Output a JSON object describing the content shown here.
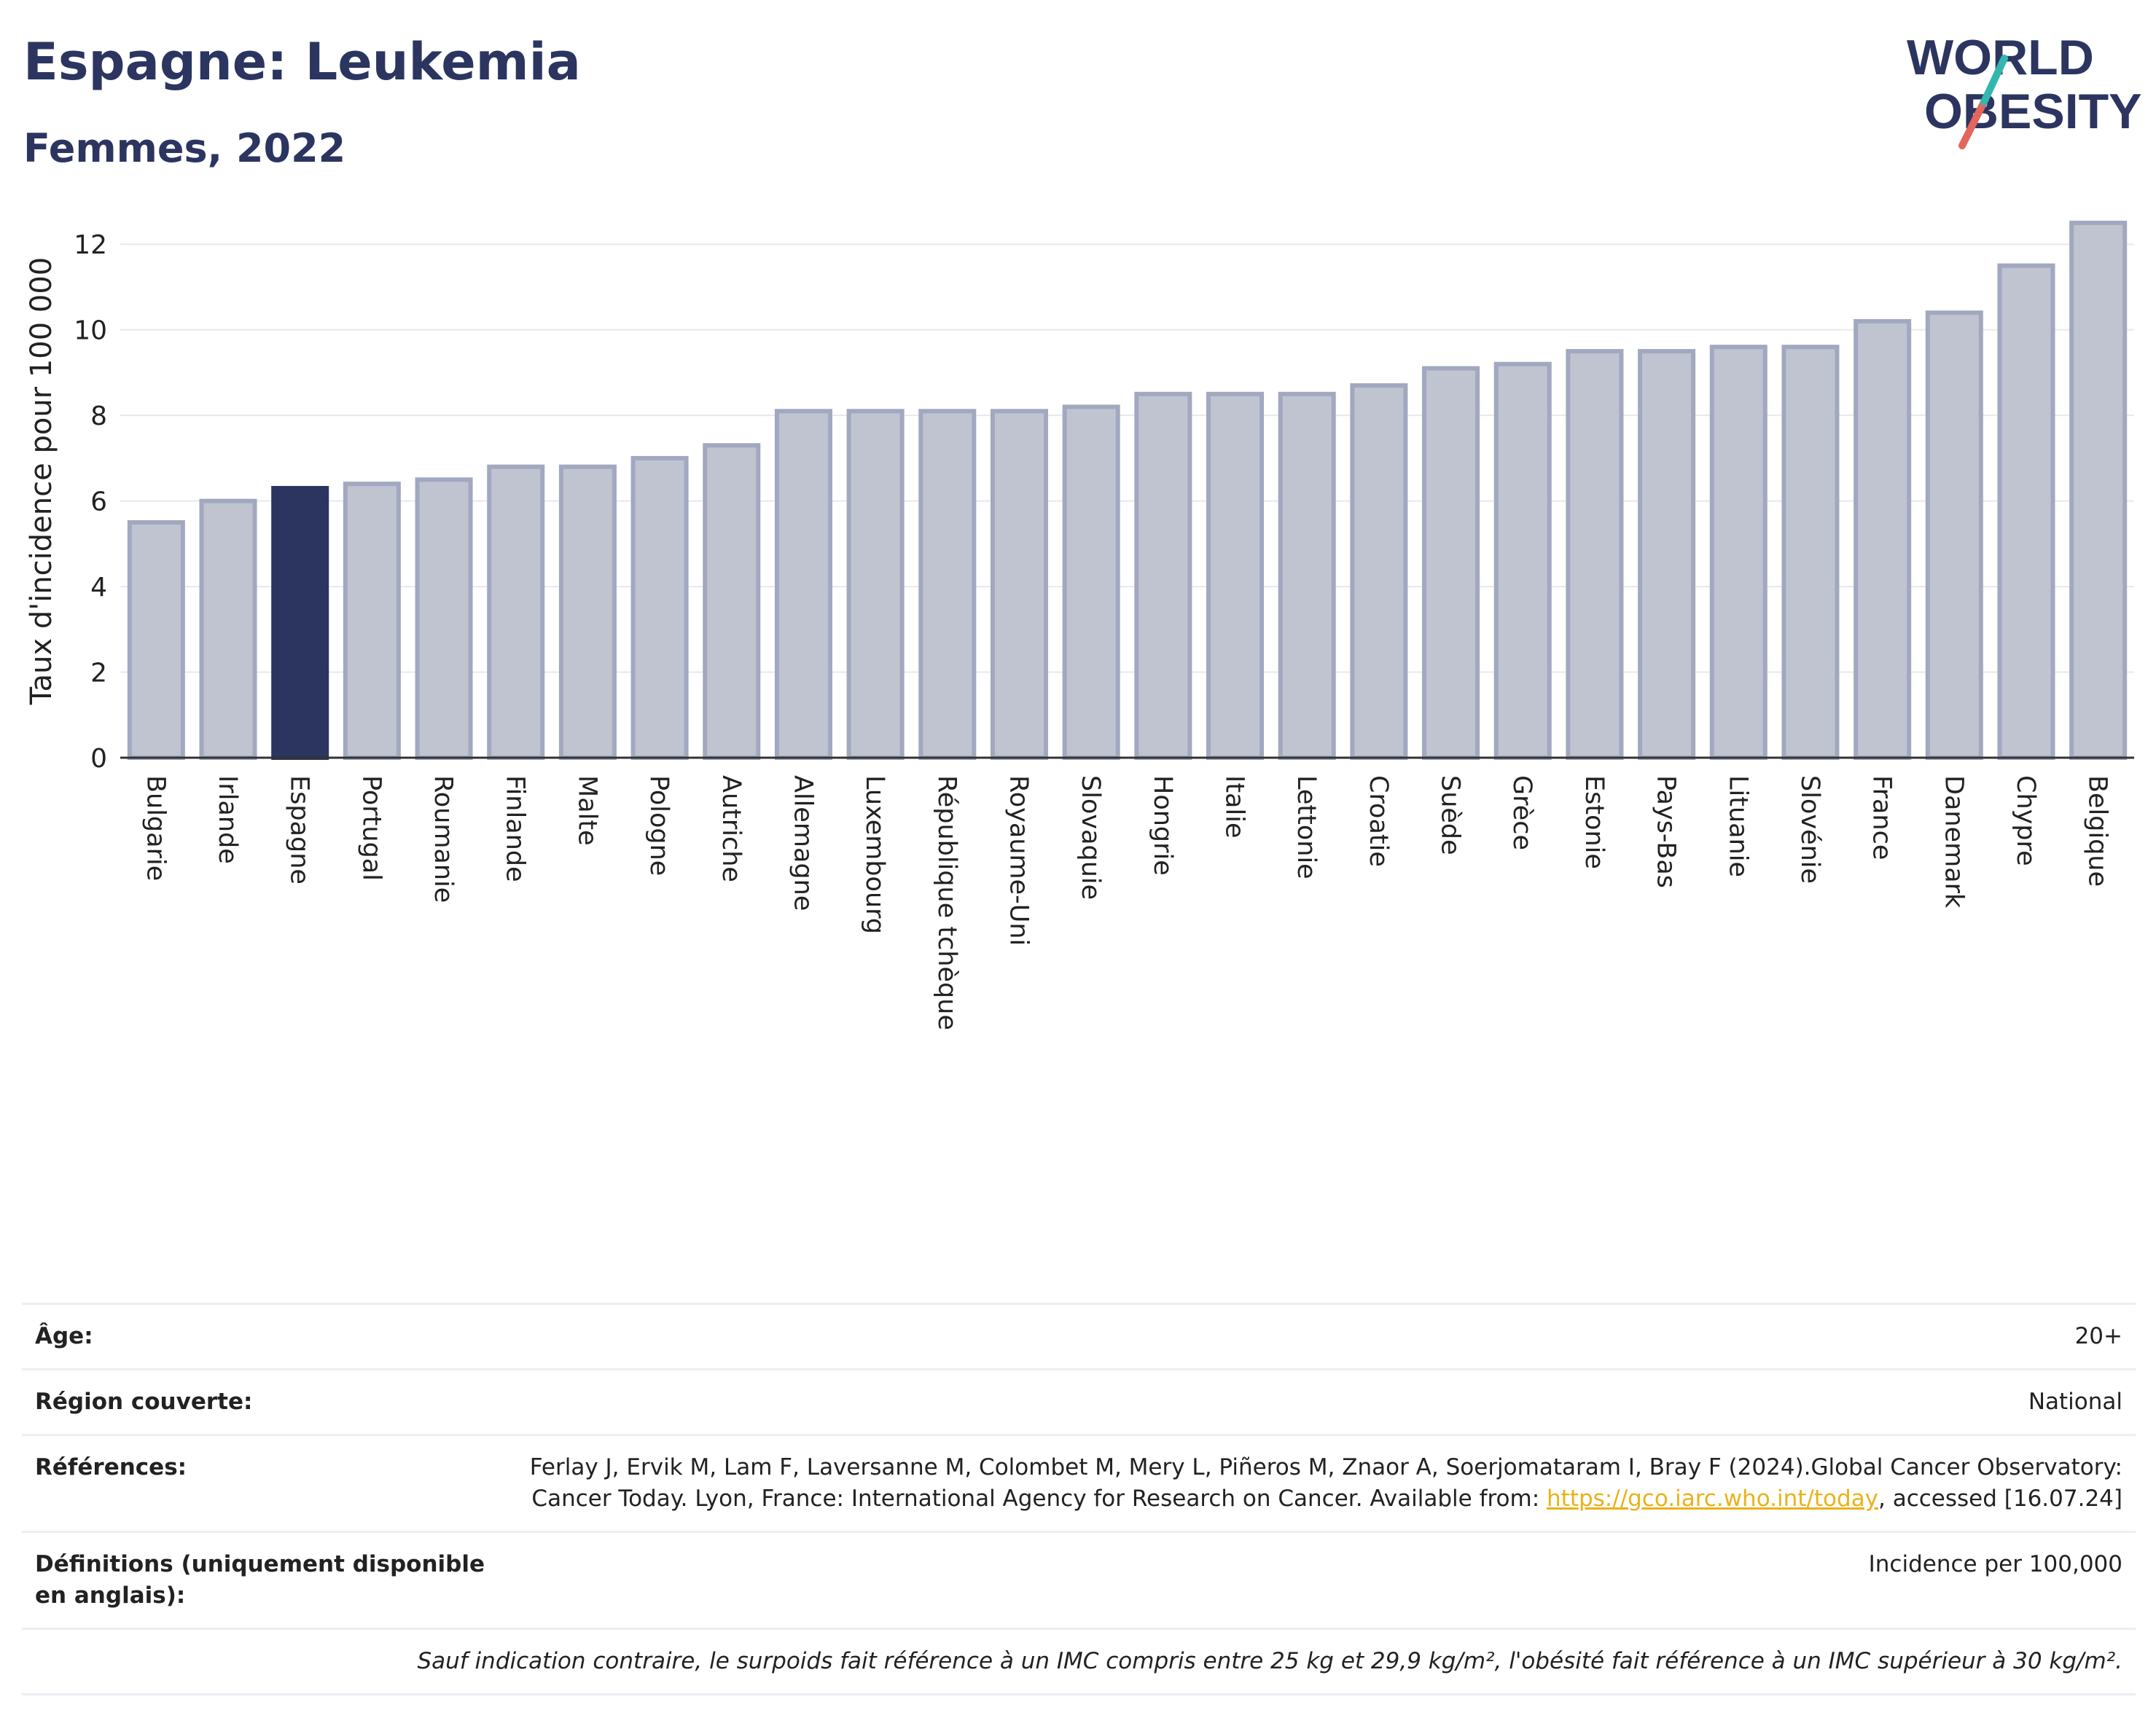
{
  "header": {
    "title": "Espagne: Leukemia",
    "subtitle": "Femmes, 2022"
  },
  "logo": {
    "line1": "WORLD",
    "line2": "OBESITY",
    "colors": {
      "text": "#2b3560",
      "slash_red": "#e3655b",
      "slash_teal": "#34b6b0"
    }
  },
  "colors": {
    "highlight_bar": "#2b3560",
    "other_bar_fill": "#c0c4d1",
    "other_bar_stroke": "#a1a8bf",
    "grid": "#e6e8ef",
    "axis": "#333333"
  },
  "chart_data": {
    "type": "bar",
    "title": "Espagne: Leukemia",
    "subtitle": "Femmes, 2022",
    "xlabel": "",
    "ylabel": "Taux d'incidence pour 100 000",
    "ylim": [
      0,
      12.6
    ],
    "yticks": [
      0,
      2,
      4,
      6,
      8,
      10,
      12
    ],
    "grid": true,
    "highlight": "Espagne",
    "categories": [
      "Bulgarie",
      "Irlande",
      "Espagne",
      "Portugal",
      "Roumanie",
      "Finlande",
      "Malte",
      "Pologne",
      "Autriche",
      "Allemagne",
      "Luxembourg",
      "République tchèque",
      "Royaume-Uni",
      "Slovaquie",
      "Hongrie",
      "Italie",
      "Lettonie",
      "Croatie",
      "Suède",
      "Grèce",
      "Estonie",
      "Pays-Bas",
      "Lituanie",
      "Slovénie",
      "France",
      "Danemark",
      "Chypre",
      "Belgique"
    ],
    "values": [
      5.5,
      6.0,
      6.3,
      6.4,
      6.5,
      6.8,
      6.8,
      7.0,
      7.3,
      8.1,
      8.1,
      8.1,
      8.1,
      8.2,
      8.5,
      8.5,
      8.5,
      8.7,
      9.1,
      9.2,
      9.5,
      9.5,
      9.6,
      9.6,
      10.2,
      10.4,
      11.5,
      12.5
    ]
  },
  "info": {
    "rows": [
      {
        "label": "Âge:",
        "value": "20+"
      },
      {
        "label": "Région couverte:",
        "value": "National"
      },
      {
        "label": "Références:",
        "value_before": "Ferlay J, Ervik M, Lam F, Laversanne M, Colombet M, Mery L, Piñeros M, Znaor A, Soerjomataram I, Bray F (2024).Global Cancer Observatory: Cancer Today. Lyon, France: International Agency for Research on Cancer. Available from: ",
        "link": "https://gco.iarc.who.int/today",
        "value_after": ", accessed [16.07.24]"
      },
      {
        "label": "Définitions (uniquement disponible en anglais):",
        "value": "Incidence per 100,000"
      }
    ],
    "note": "Sauf indication contraire, le surpoids fait référence à un IMC compris entre 25 kg et 29,9 kg/m², l'obésité fait référence à un IMC supérieur à 30 kg/m²."
  }
}
